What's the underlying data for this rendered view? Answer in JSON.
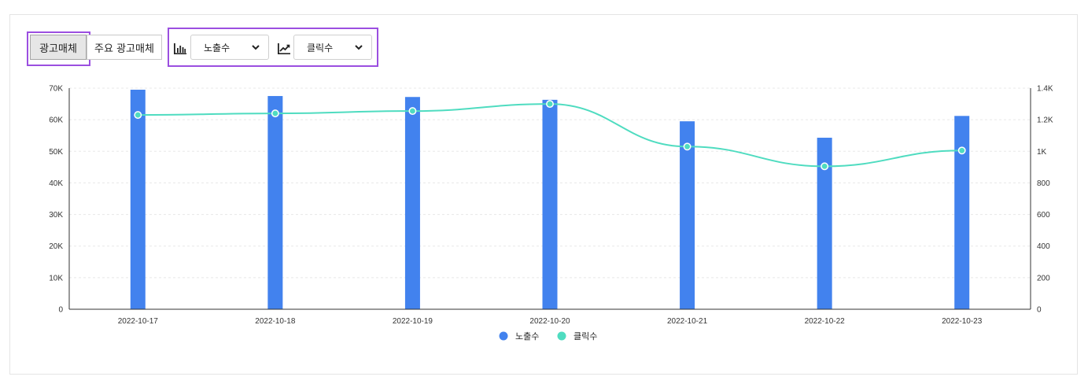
{
  "toolbar": {
    "tab_media": "광고매체",
    "tab_main_media": "주요 광고매체",
    "select_bar": "노출수",
    "select_line": "클릭수",
    "bar_icon": "bar-chart-icon",
    "line_icon": "line-chart-icon",
    "dropdown_icon": "chevron-down-icon"
  },
  "colors": {
    "bar": "#4282ee",
    "line": "#4fdcc0",
    "weekday_label": "#111111",
    "saturday_label": "#1e3ad6",
    "sunday_label": "#e0201a",
    "highlight_border": "#9b4fe0"
  },
  "chart_data": {
    "type": "bar",
    "categories": [
      "2022-10-17",
      "2022-10-18",
      "2022-10-19",
      "2022-10-20",
      "2022-10-21",
      "2022-10-22",
      "2022-10-23"
    ],
    "category_label_colors": [
      "weekday",
      "weekday",
      "weekday",
      "weekday",
      "weekday",
      "saturday",
      "sunday"
    ],
    "series": [
      {
        "name": "노출수",
        "type": "bar",
        "axis": "left",
        "values": [
          69500,
          67500,
          67200,
          66300,
          59500,
          54300,
          61200
        ]
      },
      {
        "name": "클릭수",
        "type": "line",
        "axis": "right",
        "values": [
          1230,
          1240,
          1255,
          1300,
          1030,
          905,
          1005
        ]
      }
    ],
    "y_left": {
      "ylim": [
        0,
        70000
      ],
      "ticks": [
        "0",
        "10K",
        "20K",
        "30K",
        "40K",
        "50K",
        "60K",
        "70K"
      ]
    },
    "y_right": {
      "ylim": [
        0,
        1400
      ],
      "ticks": [
        "0",
        "200",
        "400",
        "600",
        "800",
        "1K",
        "1.2K",
        "1.4K"
      ]
    },
    "grid": true,
    "legend": "bottom-center",
    "xlabel": "",
    "ylabel": ""
  }
}
